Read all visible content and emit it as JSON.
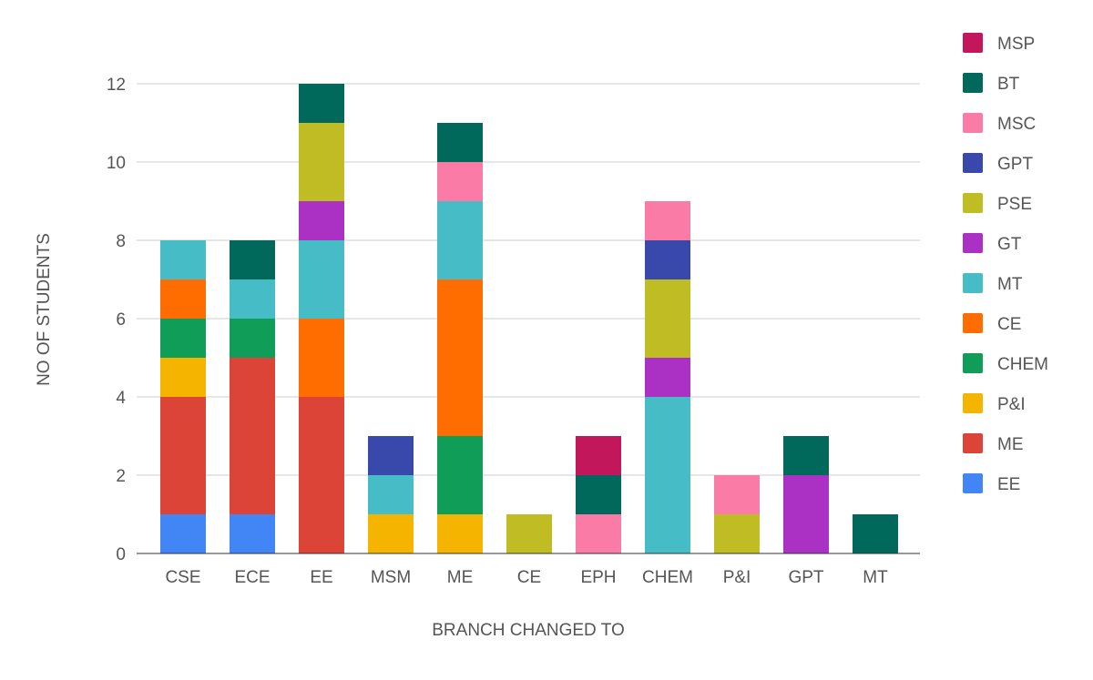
{
  "chart_data": {
    "type": "bar",
    "stacked": true,
    "title": "",
    "xlabel": "BRANCH CHANGED TO",
    "ylabel": "NO OF STUDENTS",
    "ylim": [
      0,
      12
    ],
    "yticks": [
      0,
      2,
      4,
      6,
      8,
      10,
      12
    ],
    "grid": true,
    "legend_position": "right",
    "categories": [
      "CSE",
      "ECE",
      "EE",
      "MSM",
      "ME",
      "CE",
      "EPH",
      "CHEM",
      "P&I",
      "GPT",
      "MT"
    ],
    "series": [
      {
        "name": "EE",
        "color": "#4285f4",
        "values": [
          1,
          1,
          0,
          0,
          0,
          0,
          0,
          0,
          0,
          0,
          0
        ]
      },
      {
        "name": "ME",
        "color": "#db4437",
        "values": [
          3,
          4,
          4,
          0,
          0,
          0,
          0,
          0,
          0,
          0,
          0
        ]
      },
      {
        "name": "P&I",
        "color": "#f4b400",
        "values": [
          1,
          0,
          0,
          1,
          1,
          0,
          0,
          0,
          0,
          0,
          0
        ]
      },
      {
        "name": "CHEM",
        "color": "#0f9d58",
        "values": [
          1,
          1,
          0,
          0,
          2,
          0,
          0,
          0,
          0,
          0,
          0
        ]
      },
      {
        "name": "CE",
        "color": "#ff6d00",
        "values": [
          1,
          0,
          2,
          0,
          4,
          0,
          0,
          0,
          0,
          0,
          0
        ]
      },
      {
        "name": "MT",
        "color": "#46bdc6",
        "values": [
          1,
          1,
          2,
          1,
          2,
          0,
          0,
          4,
          0,
          0,
          0
        ]
      },
      {
        "name": "GT",
        "color": "#ab30c4",
        "values": [
          0,
          0,
          1,
          0,
          0,
          0,
          0,
          1,
          0,
          2,
          0
        ]
      },
      {
        "name": "PSE",
        "color": "#c0bd24",
        "values": [
          0,
          0,
          2,
          0,
          0,
          1,
          0,
          2,
          1,
          0,
          0
        ]
      },
      {
        "name": "GPT",
        "color": "#3949ab",
        "values": [
          0,
          0,
          0,
          1,
          0,
          0,
          0,
          1,
          0,
          0,
          0
        ]
      },
      {
        "name": "MSC",
        "color": "#f97ba6",
        "values": [
          0,
          0,
          0,
          0,
          1,
          0,
          1,
          1,
          1,
          0,
          0
        ]
      },
      {
        "name": "BT",
        "color": "#00695c",
        "values": [
          0,
          1,
          1,
          0,
          1,
          0,
          1,
          0,
          0,
          1,
          1
        ]
      },
      {
        "name": "MSP",
        "color": "#c2185b",
        "values": [
          0,
          0,
          0,
          0,
          0,
          0,
          1,
          0,
          0,
          0,
          0
        ]
      }
    ]
  }
}
